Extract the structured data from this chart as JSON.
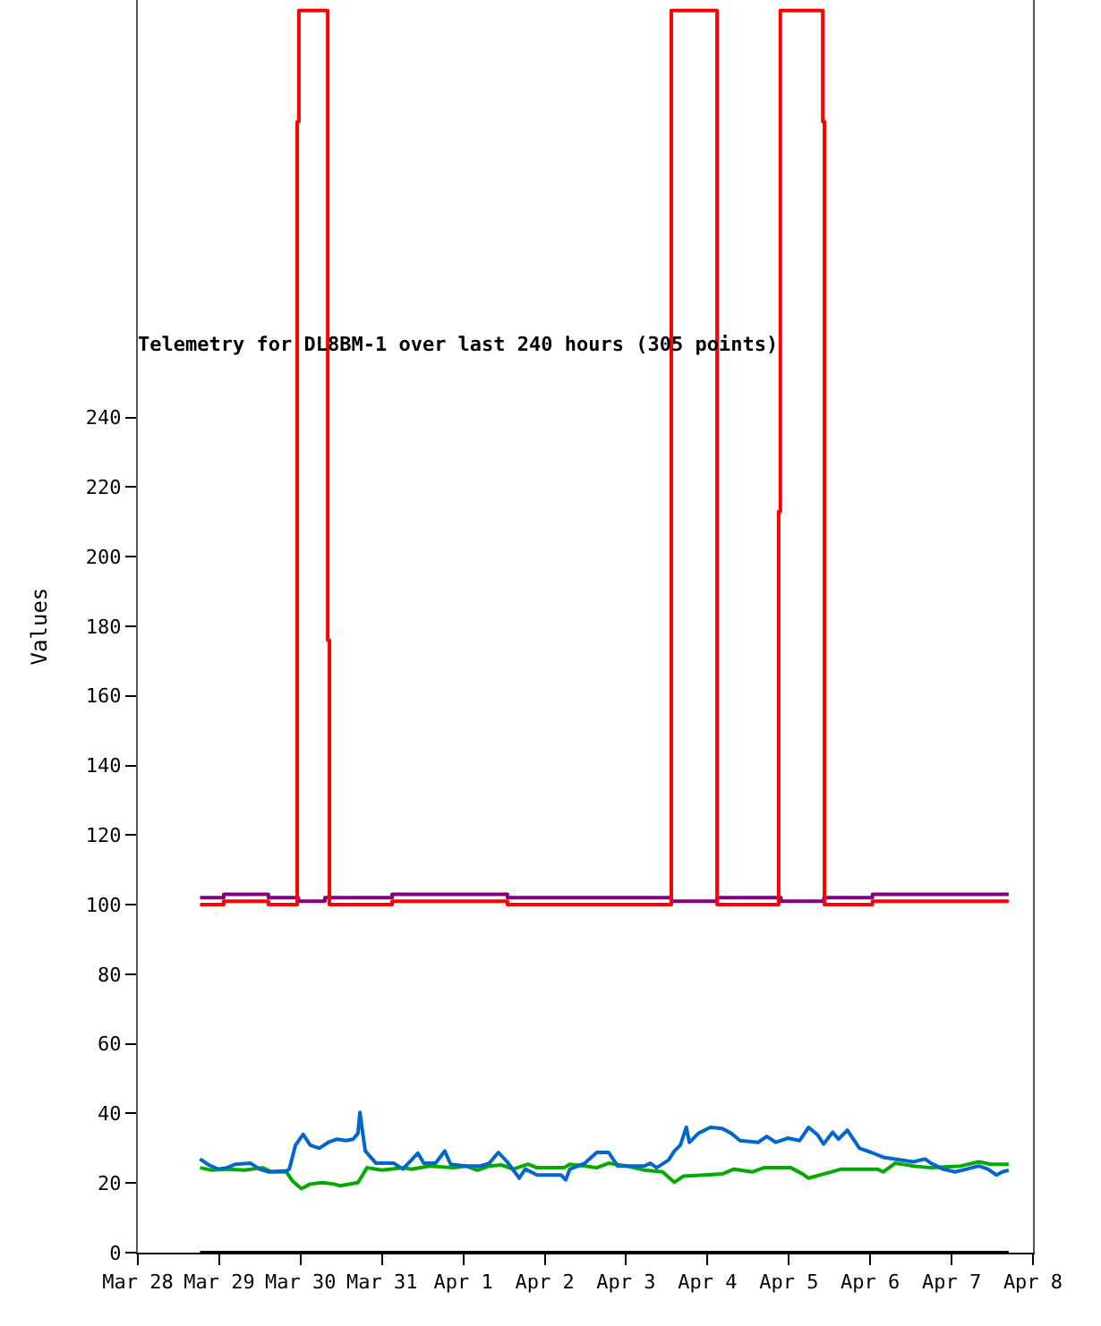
{
  "chart_data": {
    "type": "line",
    "title": "Telemetry for DL8BM-1 over last 240 hours (305 points)",
    "ylabel": "Values",
    "xlim": [
      "--03-28",
      "--04-08"
    ],
    "xticks": [
      {
        "value": "--03-28",
        "label": "Mar 28"
      },
      {
        "value": "--03-29",
        "label": "Mar 29"
      },
      {
        "value": "--03-30",
        "label": "Mar 30"
      },
      {
        "value": "--03-31",
        "label": "Mar 31"
      },
      {
        "value": "--04-01",
        "label": "Apr 1"
      },
      {
        "value": "--04-02",
        "label": "Apr 2"
      },
      {
        "value": "--04-03",
        "label": "Apr 3"
      },
      {
        "value": "--04-04",
        "label": "Apr 4"
      },
      {
        "value": "--04-05",
        "label": "Apr 5"
      },
      {
        "value": "--04-06",
        "label": "Apr 6"
      },
      {
        "value": "--04-07",
        "label": "Apr 7"
      },
      {
        "value": "--04-08",
        "label": "Apr 8"
      }
    ],
    "ylim": [
      0,
      360
    ],
    "yticks": [
      0,
      20,
      40,
      60,
      80,
      100,
      120,
      140,
      160,
      180,
      200,
      220,
      240
    ],
    "series": [
      {
        "type": "line",
        "color": "#000000",
        "x": [
          "--03-28T18:20",
          "--04-07T16:50"
        ],
        "values": [
          0,
          0
        ]
      },
      {
        "type": "line",
        "color": "#00aa00",
        "x": [
          "--03-28T18:20",
          "--03-28T21:50",
          "--03-29T02:15",
          "--03-29T07:30",
          "--03-29T12:45",
          "--03-29T15:25",
          "--03-29T19:50",
          "--03-29T21:35",
          "--03-30T00:15",
          "--03-30T02:50",
          "--03-30T06:25",
          "--03-30T09:55",
          "--03-30T11:40",
          "--03-30T16:55",
          "--03-30T19:35",
          "--03-31T00:00",
          "--03-31T06:10",
          "--03-31T08:45",
          "--03-31T14:05",
          "--03-31T21:05",
          "--04-01T00:40",
          "--04-01T04:10",
          "--04-01T07:40",
          "--04-01T11:10",
          "--04-01T14:45",
          "--04-01T19:05",
          "--04-01T21:45",
          "--04-02T05:40",
          "--04-02T07:25",
          "--04-02T11:50",
          "--04-02T15:20",
          "--04-02T18:50",
          "--04-03T00:10",
          "--04-03T05:25",
          "--04-03T10:45",
          "--04-03T14:15",
          "--04-03T16:55",
          "--04-03T23:05",
          "--04-04T04:20",
          "--04-04T07:50",
          "--04-04T13:10",
          "--04-04T16:40",
          "--04-05T00:35",
          "--04-05T04:05",
          "--04-05T05:50",
          "--04-05T10:15",
          "--04-05T15:30",
          "--04-06T02:05",
          "--04-06T03:50",
          "--04-06T07:20",
          "--04-06T12:40",
          "--04-06T17:55",
          "--04-07T02:45",
          "--04-07T08:00",
          "--04-07T11:30",
          "--04-07T16:50"
        ],
        "values": [
          24.4,
          23.7,
          24.0,
          23.7,
          24.4,
          23.2,
          23.2,
          20.6,
          18.4,
          19.7,
          20.1,
          19.7,
          19.2,
          20.1,
          24.4,
          23.7,
          24.4,
          24.0,
          24.9,
          24.4,
          24.9,
          23.7,
          24.9,
          25.2,
          24.0,
          25.4,
          24.4,
          24.4,
          25.4,
          24.9,
          24.4,
          25.7,
          24.9,
          23.7,
          23.2,
          20.2,
          22.0,
          22.3,
          22.6,
          24.0,
          23.2,
          24.4,
          24.4,
          22.6,
          21.4,
          22.6,
          24.0,
          24.0,
          23.2,
          25.7,
          24.9,
          24.4,
          24.9,
          26.1,
          25.4,
          25.4
        ]
      },
      {
        "type": "line",
        "color": "#0066cc",
        "x": [
          "--03-28T18:20",
          "--03-28T20:55",
          "--03-28T23:35",
          "--03-29T02:15",
          "--03-29T04:50",
          "--03-29T09:15",
          "--03-29T11:55",
          "--03-29T14:35",
          "--03-29T19:50",
          "--03-29T20:40",
          "--03-29T22:30",
          "--03-30T00:45",
          "--03-30T02:50",
          "--03-30T05:30",
          "--03-30T08:10",
          "--03-30T10:45",
          "--03-30T13:25",
          "--03-30T15:30",
          "--03-30T16:55",
          "--03-30T17:30",
          "--03-30T18:20",
          "--03-30T19:05",
          "--03-30T22:15",
          "--03-31T03:30",
          "--03-31T06:10",
          "--03-31T10:35",
          "--03-31T12:20",
          "--03-31T15:50",
          "--03-31T18:30",
          "--03-31T20:15",
          "--04-01T00:40",
          "--04-01T05:00",
          "--04-01T07:40",
          "--04-01T10:20",
          "--04-01T12:55",
          "--04-01T16:30",
          "--04-01T18:15",
          "--04-01T21:45",
          "--04-02T04:50",
          "--04-02T06:10",
          "--04-02T07:25",
          "--04-02T11:50",
          "--04-02T15:20",
          "--04-02T18:50",
          "--04-02T21:30",
          "--04-03T05:25",
          "--04-03T07:10",
          "--04-03T09:00",
          "--04-03T12:30",
          "--04-03T14:15",
          "--04-03T16:00",
          "--04-03T17:45",
          "--04-03T18:40",
          "--04-03T21:20",
          "--04-04T00:50",
          "--04-04T04:20",
          "--04-04T07:00",
          "--04-04T09:35",
          "--04-04T14:55",
          "--04-04T17:30",
          "--04-04T20:10",
          "--04-04T23:40",
          "--04-05T03:10",
          "--04-05T05:50",
          "--04-05T08:30",
          "--04-05T10:15",
          "--04-05T12:55",
          "--04-05T14:40",
          "--04-05T17:15",
          "--04-05T20:50",
          "--04-06T00:20",
          "--04-06T03:50",
          "--04-06T09:10",
          "--04-06T12:40",
          "--04-06T16:10",
          "--04-06T17:55",
          "--04-06T21:25",
          "--04-07T01:00",
          "--04-07T04:30",
          "--04-07T08:00",
          "--04-07T10:40",
          "--04-07T13:15",
          "--04-07T15:00",
          "--04-07T16:50"
        ],
        "values": [
          26.9,
          25.2,
          24.0,
          24.4,
          25.4,
          25.7,
          24.0,
          23.2,
          23.5,
          24.0,
          30.9,
          34.0,
          30.9,
          30.0,
          31.7,
          32.6,
          32.2,
          32.6,
          34.3,
          40.3,
          34.3,
          29.2,
          25.7,
          25.7,
          24.0,
          28.6,
          25.7,
          25.7,
          29.2,
          25.4,
          24.9,
          24.9,
          25.7,
          28.8,
          26.1,
          21.4,
          24.0,
          22.3,
          22.3,
          20.9,
          24.0,
          25.7,
          28.8,
          28.8,
          24.9,
          24.9,
          25.7,
          24.4,
          26.6,
          29.2,
          30.9,
          36.0,
          31.7,
          34.3,
          36.0,
          35.7,
          34.3,
          32.2,
          31.7,
          33.4,
          31.7,
          32.9,
          32.2,
          36.0,
          33.8,
          31.2,
          34.6,
          32.6,
          35.2,
          30.0,
          28.8,
          27.4,
          26.6,
          26.1,
          26.9,
          25.7,
          24.0,
          23.2,
          24.0,
          24.9,
          24.0,
          22.3,
          23.2,
          23.7
        ]
      },
      {
        "type": "step",
        "color": "#800080",
        "x": [
          "--03-28T18:20",
          "--03-29T01:20",
          "--03-29T14:30",
          "--03-29T23:20",
          "--03-30T07:10",
          "--03-31T03:00",
          "--04-01T13:00",
          "--04-03T13:20",
          "--04-04T02:50",
          "--04-04T21:40",
          "--04-05T10:20",
          "--04-06T00:40",
          "--04-07T16:50"
        ],
        "values": [
          102,
          103,
          102,
          101,
          102,
          103,
          102,
          101,
          102,
          101,
          102,
          103,
          103
        ]
      },
      {
        "type": "step",
        "color": "#ff0000",
        "x": [
          "--03-28T18:20",
          "--03-29T01:20",
          "--03-29T14:30",
          "--03-29T23:00",
          "--03-29T23:30",
          "--03-30T08:00",
          "--03-30T08:30",
          "--03-31T03:00",
          "--04-01T13:00",
          "--04-03T13:20",
          "--04-04T02:50",
          "--04-04T21:00",
          "--04-04T21:30",
          "--04-05T10:00",
          "--04-05T10:30",
          "--04-06T00:40",
          "--04-07T16:50"
        ],
        "values": [
          100,
          101,
          100,
          325,
          357,
          176,
          100,
          101,
          100,
          357,
          100,
          213,
          357,
          325,
          100,
          101,
          101
        ]
      }
    ]
  }
}
